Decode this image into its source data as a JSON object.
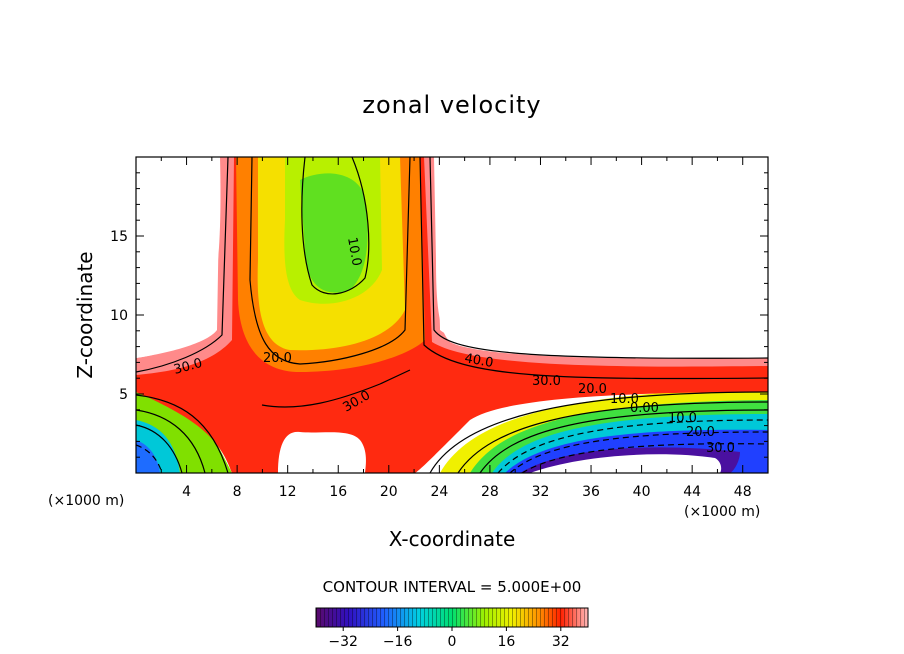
{
  "chart_data": {
    "type": "contour",
    "title": "zonal velocity",
    "xlabel": "X-coordinate",
    "ylabel": "Z-coordinate",
    "x_unit": "(×1000 m)",
    "y_unit": "(×1000 m)",
    "xlim": [
      0,
      50
    ],
    "ylim": [
      0,
      20
    ],
    "x_ticks": [
      4,
      8,
      12,
      16,
      20,
      24,
      28,
      32,
      36,
      40,
      44,
      48
    ],
    "y_ticks": [
      5,
      10,
      15
    ],
    "contour_interval_text": "CONTOUR INTERVAL = 5.000E+00",
    "contour_labels": [
      "30.0",
      "20.0",
      "10.0",
      "30.0",
      "40.0",
      "30.0",
      "20.0",
      "10.0",
      "0.00",
      "10.0",
      "20.0",
      "30.0"
    ],
    "colorbar": {
      "range": [
        -40,
        40
      ],
      "ticks": [
        -32,
        -16,
        0,
        16,
        32
      ],
      "tick_labels": [
        "−32",
        "−16",
        "0",
        "16",
        "32"
      ]
    },
    "colors": {
      "deep_negative": "#4a0a8a",
      "negative": "#1e3cff",
      "zero": "#00e070",
      "mid_positive": "#f0f000",
      "high_positive": "#ff2000",
      "peak": "#ffb0b0"
    }
  }
}
